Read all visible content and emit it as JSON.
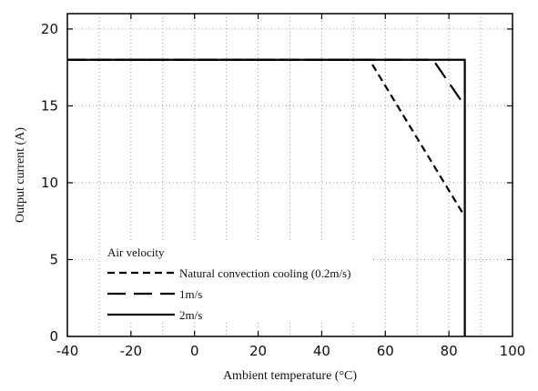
{
  "chart_data": {
    "type": "line",
    "xlabel": "Ambient temperature (°C)",
    "ylabel": "Output current (A)",
    "xlim": [
      -40,
      100
    ],
    "ylim": [
      0,
      21
    ],
    "xticks": [
      -40,
      -20,
      0,
      20,
      40,
      60,
      80,
      100
    ],
    "yticks": [
      0,
      5,
      10,
      15,
      20
    ],
    "xgrid": [
      -30,
      -20,
      -10,
      0,
      10,
      20,
      30,
      40,
      50,
      60,
      70,
      80,
      90
    ],
    "ygrid": [
      5,
      10,
      15,
      20
    ],
    "grid": true,
    "legend": {
      "title": "Air velocity",
      "placement": "bottom-left"
    },
    "series": [
      {
        "name": "Natural convection cooling (0.2m/s)",
        "style": "short-dash",
        "x": [
          -40,
          55,
          85
        ],
        "y": [
          18,
          18,
          7.8
        ]
      },
      {
        "name": "1m/s",
        "style": "long-dash",
        "x": [
          -40,
          75,
          85
        ],
        "y": [
          18,
          18,
          15
        ]
      },
      {
        "name": "2m/s",
        "style": "solid",
        "x": [
          -40,
          85,
          85
        ],
        "y": [
          18,
          18,
          0
        ]
      }
    ]
  }
}
